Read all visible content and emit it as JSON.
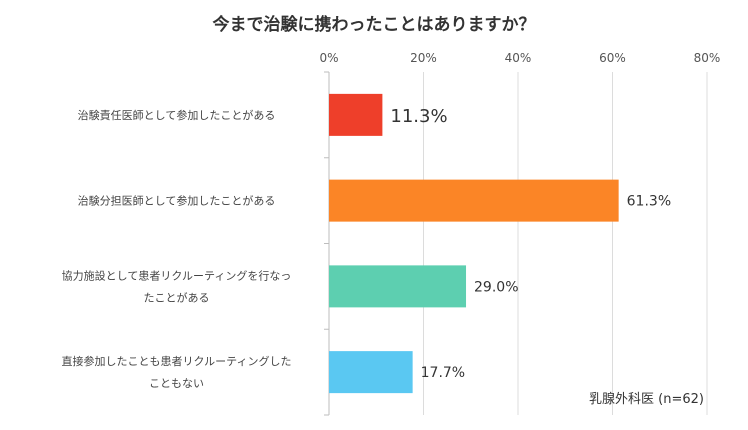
{
  "chart_data": {
    "type": "bar",
    "orientation": "horizontal",
    "title": "今まで治験に携わったことはありますか？",
    "note": "乳腺外科医 (n=62)",
    "categories": [
      [
        "治験責任医師として参加したことがある"
      ],
      [
        "治験分担医師として参加したことがある"
      ],
      [
        "協力施設として患者リクルーティングを行なっ",
        "たことがある"
      ],
      [
        "直接参加したことも患者リクルーティングした",
        "こともない"
      ]
    ],
    "values": [
      11.3,
      61.3,
      29.0,
      17.7
    ],
    "value_labels": [
      "11.3%",
      "61.3%",
      "29.0%",
      "17.7%"
    ],
    "colors": [
      "#ee3f2a",
      "#fb8526",
      "#5dcfb0",
      "#5ac8f2"
    ],
    "xlim": [
      0,
      80
    ],
    "xticks": [
      0,
      20,
      40,
      60,
      80
    ],
    "xtick_labels": [
      "0%",
      "20%",
      "40%",
      "60%",
      "80%"
    ],
    "grid": true,
    "legend": "none"
  }
}
